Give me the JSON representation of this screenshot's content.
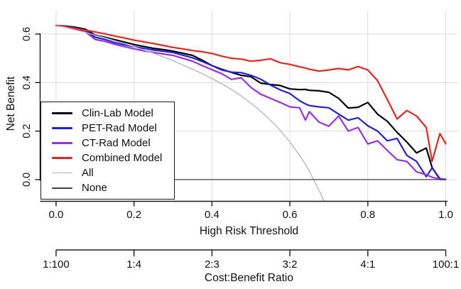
{
  "figure": {
    "background": "#ffffff"
  },
  "y_axis": {
    "title": "Net Benefit",
    "ticks": [
      0.0,
      0.2,
      0.4,
      0.6
    ],
    "tick_labels": [
      "0.0",
      "0.2",
      "0.4",
      "0.6"
    ],
    "range": [
      -0.088,
      0.6965
    ]
  },
  "x_axis": {
    "title": "High Risk Threshold",
    "ticks": [
      0.0,
      0.2,
      0.4,
      0.6,
      0.8,
      1.0
    ],
    "tick_labels": [
      "0.0",
      "0.2",
      "0.4",
      "0.6",
      "0.8",
      "1.0"
    ],
    "range": [
      -0.04,
      1.03
    ]
  },
  "cost_benefit_axis": {
    "title": "Cost:Benefit Ratio",
    "ticks": [
      0.0,
      0.2,
      0.4,
      0.6,
      0.8,
      1.0
    ],
    "tick_labels": [
      "1:100",
      "1:4",
      "2:3",
      "3:2",
      "4:1",
      "100:1"
    ]
  },
  "legend": {
    "items": [
      {
        "label": "Clin-Lab Model",
        "color": "#000000",
        "thick": true
      },
      {
        "label": "PET-Rad Model",
        "color": "#2222dd",
        "thick": true
      },
      {
        "label": "CT-Rad Model",
        "color": "#9a2fe6",
        "thick": true
      },
      {
        "label": "Combined Model",
        "color": "#e8251d",
        "thick": true
      },
      {
        "label": "All",
        "color": "#b5b5b5",
        "thick": false
      },
      {
        "label": "None",
        "color": "#3f3f3f",
        "thick": false
      }
    ]
  },
  "colors": {
    "grid": "#dcdcdc",
    "axis": "#1a1a1a",
    "background": "#ffffff"
  },
  "chart_data": {
    "type": "line",
    "title": "",
    "xlabel": "High Risk Threshold",
    "ylabel": "Net Benefit",
    "xlabel2": "Cost:Benefit Ratio",
    "xlim": [
      -0.04,
      1.03
    ],
    "ylim": [
      -0.088,
      0.6965
    ],
    "grid": true,
    "legend_position": "bottom-left",
    "x": [
      0,
      0.025,
      0.05,
      0.075,
      0.1,
      0.125,
      0.15,
      0.175,
      0.2,
      0.225,
      0.25,
      0.275,
      0.3,
      0.325,
      0.35,
      0.375,
      0.4,
      0.425,
      0.45,
      0.475,
      0.5,
      0.525,
      0.55,
      0.575,
      0.6,
      0.625,
      0.64,
      0.65,
      0.675,
      0.7,
      0.725,
      0.75,
      0.775,
      0.8,
      0.825,
      0.85,
      0.875,
      0.9,
      0.925,
      0.95,
      0.965,
      0.985,
      1.0
    ],
    "series": [
      {
        "name": "Clin-Lab Model",
        "color": "#000000",
        "line_width": 2.2,
        "values": [
          0.635,
          0.633,
          0.628,
          0.62,
          0.596,
          0.587,
          0.577,
          0.567,
          0.557,
          0.549,
          0.541,
          0.536,
          0.53,
          0.521,
          0.512,
          0.492,
          0.47,
          0.455,
          0.442,
          0.43,
          0.424,
          0.398,
          0.392,
          0.388,
          0.374,
          0.371,
          0.372,
          0.368,
          0.366,
          0.36,
          0.335,
          0.295,
          0.298,
          0.318,
          0.27,
          0.24,
          0.195,
          0.155,
          0.11,
          0.13,
          0.05,
          0.001,
          0.001
        ]
      },
      {
        "name": "PET-Rad Model",
        "color": "#2222dd",
        "line_width": 2.2,
        "values": [
          0.635,
          0.632,
          0.625,
          0.614,
          0.587,
          0.578,
          0.565,
          0.556,
          0.548,
          0.541,
          0.534,
          0.529,
          0.524,
          0.513,
          0.502,
          0.487,
          0.47,
          0.452,
          0.443,
          0.441,
          0.43,
          0.414,
          0.39,
          0.37,
          0.355,
          0.325,
          0.312,
          0.305,
          0.3,
          0.296,
          0.27,
          0.245,
          0.255,
          0.222,
          0.2,
          0.16,
          0.17,
          0.1,
          0.075,
          0.012,
          0.048,
          0.004,
          0.001
        ]
      },
      {
        "name": "CT-Rad Model",
        "color": "#9a2fe6",
        "line_width": 2.2,
        "values": [
          0.635,
          0.63,
          0.622,
          0.61,
          0.578,
          0.57,
          0.558,
          0.548,
          0.539,
          0.531,
          0.524,
          0.518,
          0.512,
          0.5,
          0.488,
          0.47,
          0.453,
          0.437,
          0.413,
          0.42,
          0.38,
          0.352,
          0.335,
          0.318,
          0.3,
          0.296,
          0.245,
          0.28,
          0.237,
          0.22,
          0.262,
          0.2,
          0.215,
          0.147,
          0.16,
          0.12,
          0.082,
          0.075,
          0.032,
          0.02,
          0.01,
          0.001,
          0.001
        ]
      },
      {
        "name": "Combined Model",
        "color": "#e8251d",
        "line_width": 2.2,
        "values": [
          0.635,
          0.63,
          0.623,
          0.616,
          0.609,
          0.601,
          0.592,
          0.584,
          0.575,
          0.568,
          0.561,
          0.553,
          0.545,
          0.539,
          0.532,
          0.527,
          0.52,
          0.509,
          0.5,
          0.497,
          0.488,
          0.492,
          0.498,
          0.482,
          0.475,
          0.465,
          0.46,
          0.455,
          0.447,
          0.452,
          0.458,
          0.452,
          0.466,
          0.452,
          0.408,
          0.33,
          0.25,
          0.285,
          0.262,
          0.215,
          0.075,
          0.19,
          0.148
        ]
      },
      {
        "name": "All",
        "color": "#b5b5b5",
        "line_width": 1.3,
        "values": [
          0.635,
          0.627,
          0.617,
          0.607,
          0.596,
          0.585,
          0.573,
          0.561,
          0.548,
          0.535,
          0.521,
          0.506,
          0.49,
          0.473,
          0.455,
          0.437,
          0.417,
          0.395,
          0.372,
          0.345,
          0.315,
          0.282,
          0.245,
          0.203,
          0.155,
          0.1,
          0.063,
          0.035,
          -0.045,
          -0.13,
          null,
          null,
          null,
          null,
          null,
          null,
          null,
          null,
          null,
          null,
          null,
          null,
          null
        ]
      },
      {
        "name": "None",
        "color": "#3f3f3f",
        "line_width": 1.3,
        "values": [
          0,
          0,
          0,
          0,
          0,
          0,
          0,
          0,
          0,
          0,
          0,
          0,
          0,
          0,
          0,
          0,
          0,
          0,
          0,
          0,
          0,
          0,
          0,
          0,
          0,
          0,
          0,
          0,
          0,
          0,
          0,
          0,
          0,
          0,
          0,
          0,
          0,
          0,
          0,
          0,
          0,
          0,
          0
        ]
      }
    ]
  }
}
